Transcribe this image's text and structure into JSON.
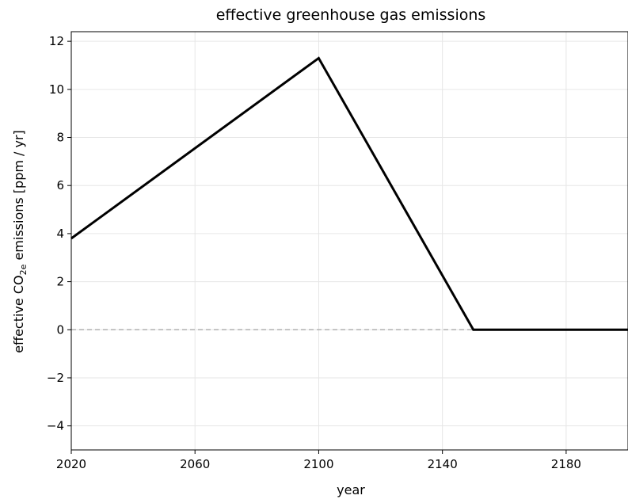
{
  "chart_data": {
    "type": "line",
    "title": "effective greenhouse gas emissions",
    "xlabel": "year",
    "ylabel": "effective CO",
    "ylabel_sub": "2e",
    "ylabel_rest": " emissions [ppm / yr]",
    "xlim": [
      2020,
      2200
    ],
    "ylim": [
      -5,
      12.4
    ],
    "xticks": [
      2020,
      2060,
      2100,
      2140,
      2180
    ],
    "yticks": [
      -4,
      -2,
      0,
      2,
      4,
      6,
      8,
      10,
      12
    ],
    "ytick_labels": [
      "−4",
      "−2",
      "0",
      "2",
      "4",
      "6",
      "8",
      "10",
      "12"
    ],
    "grid": true,
    "series": [
      {
        "x": [
          2020,
          2100,
          2150,
          2200
        ],
        "y": [
          3.8,
          11.3,
          0.0,
          0.0
        ],
        "color": "#000000",
        "style": "solid"
      }
    ],
    "reference_lines": [
      {
        "y": 0,
        "color": "#b0b0b0",
        "style": "dashed"
      }
    ]
  }
}
